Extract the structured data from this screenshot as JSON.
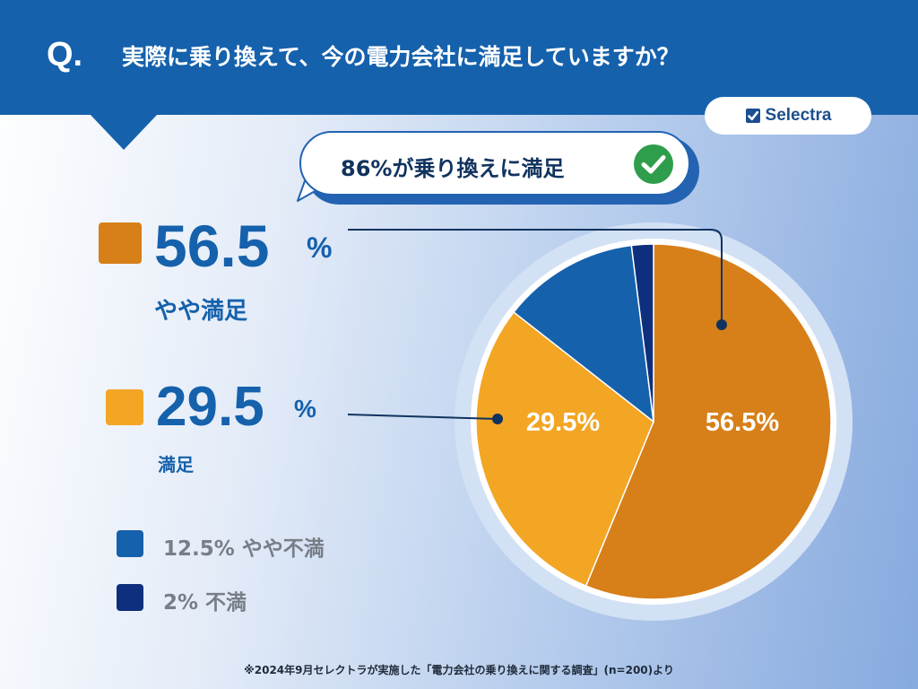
{
  "header": {
    "q_mark": "Q.",
    "question": "実際に乗り換えて、今の電力会社に満足していますか？"
  },
  "brand": {
    "name": "Selectra",
    "icon": "checkbox-icon"
  },
  "callout": {
    "text": "86%が乗り換えに満足",
    "icon": "check-circle-icon"
  },
  "legend": {
    "primary": [
      {
        "value": "56.5",
        "unit": "%",
        "label": "やや満足",
        "color": "#d77f19"
      },
      {
        "value": "29.5",
        "unit": "%",
        "label": "満足",
        "color": "#f3a524"
      }
    ],
    "secondary": [
      {
        "text": "12.5% やや不満",
        "color": "#1561ac"
      },
      {
        "text": "2% 不満",
        "color": "#0e2f7d"
      }
    ]
  },
  "chart_data": {
    "type": "pie",
    "categories": [
      "やや満足",
      "満足",
      "やや不満",
      "不満"
    ],
    "values": [
      56.5,
      29.5,
      12.5,
      2
    ],
    "colors": [
      "#d77f19",
      "#f3a524",
      "#1561ac",
      "#0e2f7d"
    ],
    "data_labels": [
      "56.5%",
      "29.5%",
      "",
      ""
    ],
    "start_angle_deg": 0,
    "direction": "clockwise",
    "title": "",
    "legend_position": "left"
  },
  "footnote": "※2024年9月セレクトラが実施した「電力会社の乗り換えに関する調査」(n=200)より"
}
